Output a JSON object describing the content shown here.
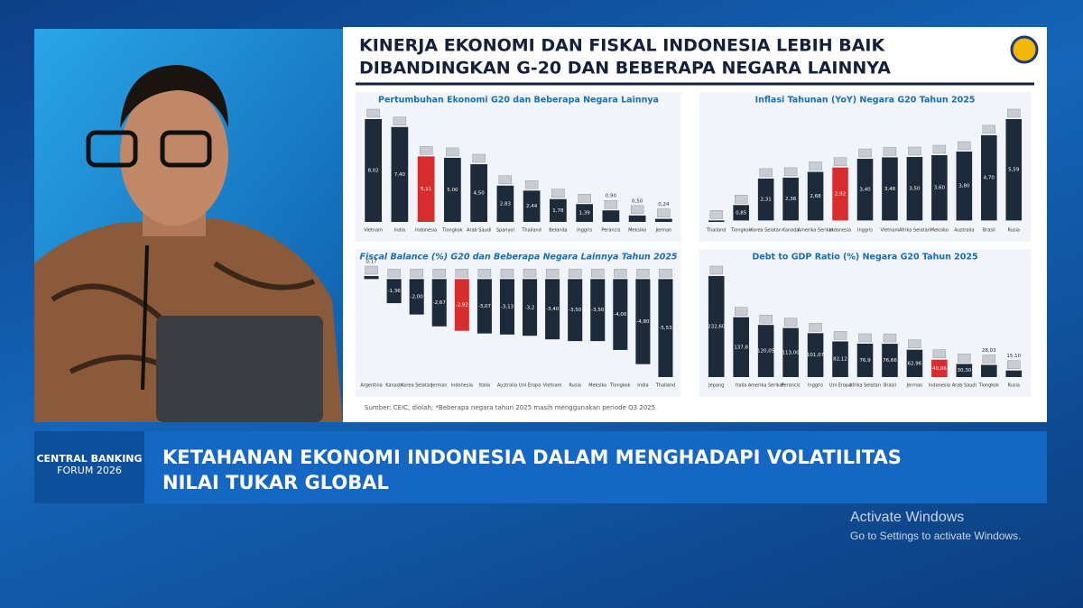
{
  "slide": {
    "title": [
      "KINERJA EKONOMI DAN FISKAL INDONESIA LEBIH BAIK",
      "DIBANDINGKAN G-20 DAN BEBERAPA NEGARA LAINNYA"
    ],
    "source": "Sumber: CEIC, diolah; *Beberapa negara tahun 2025 masih menggunakan periode Q3 2025"
  },
  "chart_data": [
    {
      "type": "bar",
      "title": "Pertumbuhan Ekonomi G20 dan Beberapa Negara Lainnya",
      "categories": [
        "Vietnam",
        "India",
        "Indonesia",
        "Tiongkok",
        "Arab Saudi",
        "Spanyol",
        "Thailand",
        "Belanda",
        "Inggris",
        "Perancis",
        "Meksiko",
        "Jerman"
      ],
      "values": [
        8.02,
        7.4,
        5.11,
        5.0,
        4.5,
        2.83,
        2.44,
        1.78,
        1.39,
        0.9,
        0.5,
        0.24
      ],
      "value_labels": [
        "8,02",
        "7,40",
        "5,11",
        "5,00",
        "4,50",
        "2,83",
        "2,44",
        "1,78",
        "1,39",
        "0,90",
        "0,50",
        "0,24"
      ],
      "colors": [
        "#1d2a3a",
        "#1d2a3a",
        "#d92d2d",
        "#1d2a3a",
        "#1d2a3a",
        "#1d2a3a",
        "#1d2a3a",
        "#1d2a3a",
        "#1d2a3a",
        "#1d2a3a",
        "#1d2a3a",
        "#1d2a3a"
      ]
    },
    {
      "type": "bar",
      "title": "Inflasi Tahunan (YoY) Negara G20 Tahun 2025",
      "categories": [
        "Thailand",
        "Tiongkok",
        "Korea Selatan",
        "Kanada",
        "Amerika Serikat",
        "Indonesia",
        "Inggris",
        "Vietnam",
        "Afrika Selatan",
        "Meksiko",
        "Australia",
        "Brasil",
        "Rusia"
      ],
      "values": [
        -0.08,
        0.85,
        2.31,
        2.36,
        2.68,
        2.92,
        3.4,
        3.48,
        3.5,
        3.6,
        3.8,
        4.7,
        5.59
      ],
      "value_labels": [
        null,
        "0,85",
        "2,31",
        "2,36",
        "2,68",
        "2,92",
        "3,40",
        "3,48",
        "3,50",
        "3,60",
        "3,80",
        "4,70",
        "5,59"
      ],
      "colors": [
        "#1d2a3a",
        "#1d2a3a",
        "#1d2a3a",
        "#1d2a3a",
        "#1d2a3a",
        "#d92d2d",
        "#1d2a3a",
        "#1d2a3a",
        "#1d2a3a",
        "#1d2a3a",
        "#1d2a3a",
        "#1d2a3a",
        "#1d2a3a"
      ]
    },
    {
      "type": "bar",
      "title": "Fiscal Balance (%) G20 dan Beberapa Negara Lainnya Tahun 2025",
      "categories": [
        "Argentina",
        "Kanada",
        "Korea Selatan",
        "Jerman",
        "Indonesia",
        "Italia",
        "Australia",
        "Uni Eropa",
        "Vietnam",
        "Rusia",
        "Meksiko",
        "Tiongkok",
        "India",
        "Thailand"
      ],
      "values": [
        0.17,
        -1.36,
        -2.0,
        -2.67,
        -2.92,
        -3.07,
        -3.13,
        -3.2,
        -3.4,
        -3.5,
        -3.5,
        -4.0,
        -4.8,
        -5.53
      ],
      "value_labels": [
        "0,17",
        "-1,36",
        "-2,00",
        "-2,67",
        "-2,92",
        "-3,07",
        "-3,13",
        "-3,2",
        "-3,40",
        "-3,50",
        "-3,50",
        "-4,00",
        "-4,80",
        "-5,53"
      ],
      "colors": [
        "#1d2a3a",
        "#1d2a3a",
        "#1d2a3a",
        "#1d2a3a",
        "#d92d2d",
        "#1d2a3a",
        "#1d2a3a",
        "#1d2a3a",
        "#1d2a3a",
        "#1d2a3a",
        "#1d2a3a",
        "#1d2a3a",
        "#1d2a3a",
        "#1d2a3a"
      ]
    },
    {
      "type": "bar",
      "title": "Debt to GDP Ratio (%)  Negara G20 Tahun 2025",
      "categories": [
        "Jepang",
        "Italia",
        "Amerika Serikat",
        "Perancis",
        "Inggris",
        "Uni Eropa",
        "Afrika Selatan",
        "Brasil",
        "Jerman",
        "Indonesia",
        "Arab Saudi",
        "Tiongkok",
        "Rusia"
      ],
      "values": [
        232.6,
        137.8,
        120.05,
        113.0,
        101.07,
        82.12,
        76.9,
        76.66,
        62.96,
        40.06,
        30.3,
        28.03,
        15.1
      ],
      "value_labels": [
        "232,60",
        "137,8",
        "120,05",
        "113,00",
        "101,07",
        "82,12",
        "76,9",
        "76,66",
        "62,96",
        "40,06",
        "30,30",
        "28,03",
        "15,10"
      ],
      "colors": [
        "#1d2a3a",
        "#1d2a3a",
        "#1d2a3a",
        "#1d2a3a",
        "#1d2a3a",
        "#1d2a3a",
        "#1d2a3a",
        "#1d2a3a",
        "#1d2a3a",
        "#d92d2d",
        "#1d2a3a",
        "#1d2a3a",
        "#1d2a3a"
      ]
    }
  ],
  "broadcast": {
    "logo": [
      "CENTRAL BANKING",
      "FORUM 2026"
    ],
    "headline": [
      "KETAHANAN EKONOMI INDONESIA DALAM MENGHADAPI VOLATILITAS",
      "NILAI TUKAR GLOBAL"
    ]
  },
  "watermark": [
    "Activate Windows",
    "Go to Settings to activate Windows."
  ]
}
